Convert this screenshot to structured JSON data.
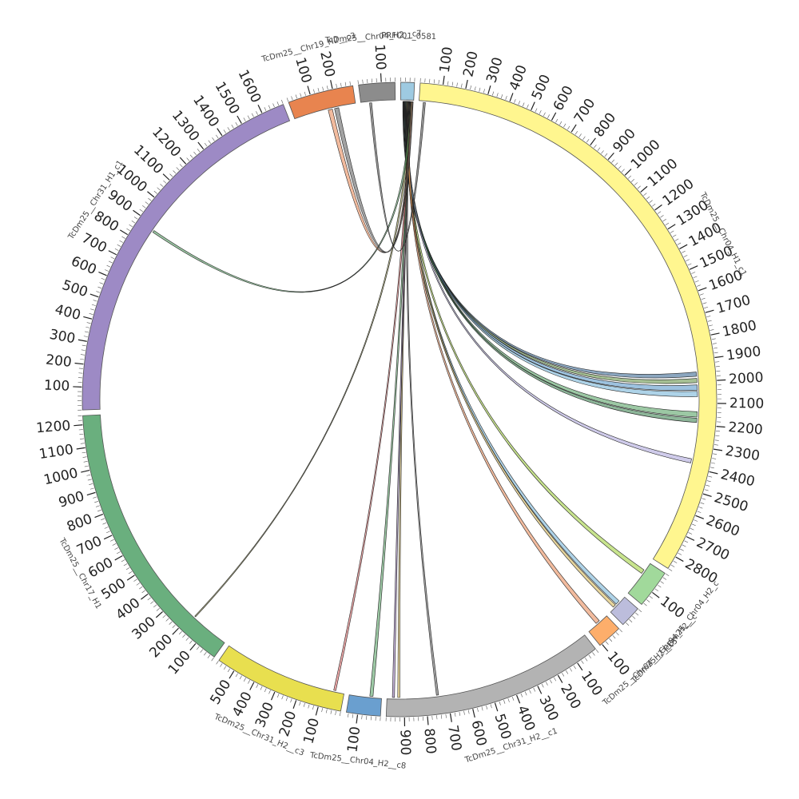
{
  "diagram": {
    "type": "circos",
    "segments": [
      {
        "name": "PRFC01_0581",
        "length": 60,
        "color": "#9ecae1",
        "ticks": []
      },
      {
        "name": "TcDm25__Chr04_H1_c1",
        "length": 2860,
        "color": "#fff68f",
        "ticks": [
          "100",
          "200",
          "300",
          "400",
          "500",
          "600",
          "700",
          "800",
          "900",
          "1000",
          "1100",
          "1200",
          "1300",
          "1400",
          "1500",
          "1600",
          "1700",
          "1800",
          "1900",
          "2000",
          "2100",
          "2200",
          "2300",
          "2400",
          "2500",
          "2600",
          "2700",
          "2800"
        ]
      },
      {
        "name": "TcDm25__Chr04_H2_c",
        "length": 170,
        "color": "#a1d99b",
        "ticks": [
          "100"
        ]
      },
      {
        "name": "TcDm25__Chr04_H2__c",
        "length": 95,
        "color": "#bcbddc",
        "ticks": []
      },
      {
        "name": "TcDm25__Chr04_H2__c5",
        "length": 110,
        "color": "#fdae6b",
        "ticks": [
          "100"
        ]
      },
      {
        "name": "TcDm25__Chr31_H2__c1",
        "length": 980,
        "color": "#b3b3b3",
        "ticks": [
          "100",
          "200",
          "300",
          "400",
          "500",
          "600",
          "700",
          "800",
          "900"
        ]
      },
      {
        "name": "TcDm25__Chr04_H2__c8",
        "length": 150,
        "color": "#6a9fcf",
        "ticks": [
          "100"
        ]
      },
      {
        "name": "TcDm25__Chr31_H2__c3",
        "length": 580,
        "color": "#e8df4f",
        "ticks": [
          "100",
          "200",
          "300",
          "400",
          "500"
        ]
      },
      {
        "name": "TcDm25__Chr17_H1",
        "length": 1240,
        "color": "#6aaf7e",
        "ticks": [
          "100",
          "200",
          "300",
          "400",
          "500",
          "600",
          "700",
          "800",
          "900",
          "1000",
          "1100",
          "1200"
        ]
      },
      {
        "name": "TcDm25__Chr31_H1_c1",
        "length": 1700,
        "color": "#9d8ac5",
        "ticks": [
          "100",
          "200",
          "300",
          "400",
          "500",
          "600",
          "700",
          "800",
          "900",
          "1000",
          "1100",
          "1200",
          "1300",
          "1400",
          "1500",
          "1600"
        ]
      },
      {
        "name": "TcDm25__Chr19_H2__c3",
        "length": 290,
        "color": "#e8844f",
        "ticks": [
          "100",
          "200"
        ]
      },
      {
        "name": "TcDm25__Chr04_H2__c7",
        "length": 160,
        "color": "#8c8c8c",
        "ticks": [
          "100"
        ]
      }
    ],
    "links": [
      {
        "from": [
          "PRFC01_0581",
          10,
          20
        ],
        "to": [
          "TcDm25__Chr04_H1_c1",
          1955,
          1975
        ],
        "color": "#2b5d8a"
      },
      {
        "from": [
          "PRFC01_0581",
          12,
          22
        ],
        "to": [
          "TcDm25__Chr04_H1_c1",
          1985,
          2005
        ],
        "color": "#5b8a3a"
      },
      {
        "from": [
          "PRFC01_0581",
          14,
          24
        ],
        "to": [
          "TcDm25__Chr04_H1_c1",
          2015,
          2040
        ],
        "color": "#4d8fc4"
      },
      {
        "from": [
          "PRFC01_0581",
          16,
          26
        ],
        "to": [
          "TcDm25__Chr04_H1_c1",
          2045,
          2070
        ],
        "color": "#6baed6"
      },
      {
        "from": [
          "PRFC01_0581",
          18,
          28
        ],
        "to": [
          "TcDm25__Chr04_H1_c1",
          2140,
          2165
        ],
        "color": "#4a9a5a"
      },
      {
        "from": [
          "PRFC01_0581",
          20,
          30
        ],
        "to": [
          "TcDm25__Chr04_H1_c1",
          2170,
          2190
        ],
        "color": "#2f7a46"
      },
      {
        "from": [
          "PRFC01_0581",
          22,
          32
        ],
        "to": [
          "TcDm25__Chr04_H1_c1",
          2360,
          2380
        ],
        "color": "#a8a0d8"
      },
      {
        "from": [
          "PRFC01_0581",
          24,
          34
        ],
        "to": [
          "TcDm25__Chr04_H2_c",
          40,
          60
        ],
        "color": "#9acd32"
      },
      {
        "from": [
          "PRFC01_0581",
          26,
          36
        ],
        "to": [
          "TcDm25__Chr04_H2__c",
          30,
          50
        ],
        "color": "#6baed6"
      },
      {
        "from": [
          "PRFC01_0581",
          28,
          38
        ],
        "to": [
          "TcDm25__Chr04_H2__c",
          55,
          70
        ],
        "color": "#d4b24a"
      },
      {
        "from": [
          "PRFC01_0581",
          30,
          40
        ],
        "to": [
          "TcDm25__Chr04_H2__c5",
          40,
          60
        ],
        "color": "#e8844f"
      },
      {
        "from": [
          "PRFC01_0581",
          32,
          42
        ],
        "to": [
          "TcDm25__Chr31_H2__c1",
          740,
          750
        ],
        "color": "#555555"
      },
      {
        "from": [
          "PRFC01_0581",
          34,
          44
        ],
        "to": [
          "TcDm25__Chr31_H2__c1",
          920,
          930
        ],
        "color": "#d4b24a"
      },
      {
        "from": [
          "PRFC01_0581",
          36,
          46
        ],
        "to": [
          "TcDm25__Chr31_H2__c1",
          945,
          955
        ],
        "color": "#8c6ab0"
      },
      {
        "from": [
          "PRFC01_0581",
          38,
          48
        ],
        "to": [
          "TcDm25__Chr04_H2__c8",
          40,
          55
        ],
        "color": "#4a9a5a"
      },
      {
        "from": [
          "PRFC01_0581",
          40,
          50
        ],
        "to": [
          "TcDm25__Chr31_H2__c3",
          40,
          50
        ],
        "color": "#e06060"
      },
      {
        "from": [
          "PRFC01_0581",
          42,
          52
        ],
        "to": [
          "TcDm25__Chr17_H1",
          180,
          185
        ],
        "color": "#8a8a3a"
      },
      {
        "from": [
          "PRFC01_0581",
          44,
          54
        ],
        "to": [
          "TcDm25__Chr31_H1_c1",
          870,
          880
        ],
        "color": "#4a9a5a"
      },
      {
        "from": [
          "PRFC01_0581",
          46,
          56
        ],
        "to": [
          "TcDm25__Chr19_H2__c3",
          160,
          180
        ],
        "color": "#e8844f"
      },
      {
        "from": [
          "PRFC01_0581",
          48,
          58
        ],
        "to": [
          "TcDm25__Chr19_H2__c3",
          190,
          210
        ],
        "color": "#555555"
      },
      {
        "from": [
          "TcDm25__Chr04_H2__c7",
          40,
          50
        ],
        "to": [
          "TcDm25__Chr04_H1_c1",
          20,
          30
        ],
        "color": "#444444"
      }
    ]
  }
}
